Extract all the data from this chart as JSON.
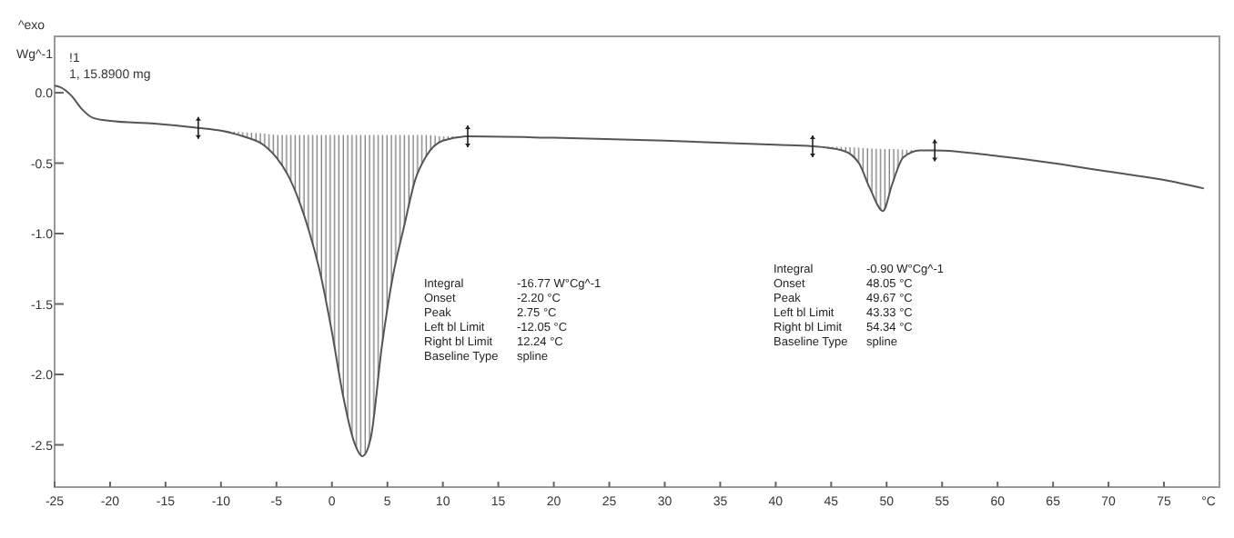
{
  "chart_data": {
    "type": "line",
    "xlabel": "°C",
    "ylabel": "Wg^-1",
    "x": [
      -25,
      -24.5,
      -23.5,
      -22.5,
      -21.5,
      -20,
      -16,
      -12.05,
      -10,
      -8,
      -6,
      -5,
      -4,
      -3,
      -2,
      -1,
      0,
      1,
      2,
      2.75,
      3.5,
      4.5,
      5.5,
      6.5,
      7.5,
      8.5,
      10,
      12.24,
      20,
      30,
      40,
      43.33,
      46,
      47.5,
      48.5,
      49.67,
      50.5,
      51.5,
      53,
      54.34,
      60,
      65,
      70,
      75,
      78.6
    ],
    "series": [
      {
        "color": "#555555",
        "values": [
          0.05,
          0.04,
          -0.02,
          -0.12,
          -0.18,
          -0.2,
          -0.22,
          -0.25,
          -0.27,
          -0.31,
          -0.38,
          -0.46,
          -0.58,
          -0.76,
          -1.0,
          -1.3,
          -1.7,
          -2.15,
          -2.48,
          -2.58,
          -2.45,
          -1.8,
          -1.3,
          -0.95,
          -0.62,
          -0.45,
          -0.34,
          -0.31,
          -0.32,
          -0.34,
          -0.37,
          -0.38,
          -0.41,
          -0.5,
          -0.68,
          -0.84,
          -0.65,
          -0.46,
          -0.41,
          -0.41,
          -0.45,
          -0.5,
          -0.56,
          -0.62,
          -0.68
        ],
        "upper": [
          null,
          null,
          null,
          null,
          null,
          null,
          null,
          -0.25,
          -0.27,
          -0.28,
          -0.29,
          -0.3,
          -0.3,
          -0.3,
          -0.3,
          -0.3,
          -0.3,
          -0.3,
          -0.3,
          -0.3,
          -0.3,
          -0.3,
          -0.3,
          -0.3,
          -0.3,
          -0.3,
          -0.31,
          -0.31,
          null,
          null,
          null,
          -0.38,
          -0.385,
          -0.39,
          -0.395,
          -0.4,
          -0.4,
          -0.405,
          -0.41,
          -0.41,
          null,
          null,
          null,
          null,
          null
        ],
        "lower": [
          null,
          null,
          null,
          null,
          null,
          null,
          null,
          -0.25,
          -0.27,
          -0.31,
          -0.38,
          -0.46,
          -0.58,
          -0.76,
          -1.0,
          -1.3,
          -1.7,
          -2.15,
          -2.48,
          -2.58,
          -2.45,
          -1.8,
          -1.3,
          -0.95,
          -0.62,
          -0.45,
          -0.34,
          -0.31,
          null,
          null,
          null,
          -0.38,
          -0.41,
          -0.5,
          -0.68,
          -0.84,
          -0.65,
          -0.46,
          -0.41,
          -0.41,
          null,
          null,
          null,
          null,
          null
        ]
      }
    ],
    "xlim": [
      -25,
      80
    ],
    "ylim": [
      -2.8,
      0.4
    ],
    "xticks": [
      -25,
      -20,
      -15,
      -10,
      -5,
      0,
      5,
      10,
      15,
      20,
      25,
      30,
      35,
      40,
      45,
      50,
      55,
      60,
      65,
      70,
      75
    ],
    "yticks": [
      {
        "value": 0,
        "label": "0.0"
      },
      {
        "value": -0.5,
        "label": "-0.5"
      },
      {
        "value": -1,
        "label": "-1.0"
      },
      {
        "value": -1.5,
        "label": "-1.5"
      },
      {
        "value": -2,
        "label": "-2.0"
      },
      {
        "value": -2.5,
        "label": "-2.5"
      }
    ],
    "grid": false,
    "annotations": [
      "^exo",
      "!1",
      "1, 15.8900 mg",
      "Integral\t-16.77 W°Cg^-1",
      "Onset\t-2.20 °C",
      "Peak\t2.75 °C",
      "Left bl Limit\t-12.05 °C",
      "Right bl Limit\t12.24 °C",
      "Baseline Type\tspline",
      "Integral\t-0.90 W°Cg^-1",
      "Onset\t48.05 °C",
      "Peak\t49.67 °C",
      "Left bl Limit\t43.33 °C",
      "Right bl Limit\t54.34 °C",
      "Baseline Type\tspline"
    ]
  }
}
